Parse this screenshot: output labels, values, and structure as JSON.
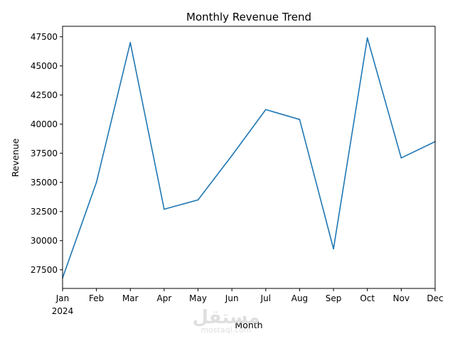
{
  "chart_data": {
    "type": "line",
    "title": "Monthly Revenue Trend",
    "xlabel": "Month",
    "ylabel": "Revenue",
    "categories": [
      "Jan",
      "Feb",
      "Mar",
      "Apr",
      "May",
      "Jun",
      "Jul",
      "Aug",
      "Sep",
      "Oct",
      "Nov",
      "Dec"
    ],
    "year_label": "2024",
    "series": [
      {
        "name": "Revenue",
        "color": "#1f77b4",
        "values": [
          26800,
          35000,
          47000,
          32700,
          33500,
          37300,
          41250,
          40400,
          29300,
          47400,
          37100,
          38500
        ]
      }
    ],
    "ylim": [
      25900,
      48400
    ],
    "yticks": [
      27500,
      30000,
      32500,
      35000,
      37500,
      40000,
      42500,
      45000,
      47500
    ],
    "grid": false,
    "legend": "none"
  },
  "watermark": {
    "text": "مستقل",
    "subtext": "mostaql.com"
  }
}
